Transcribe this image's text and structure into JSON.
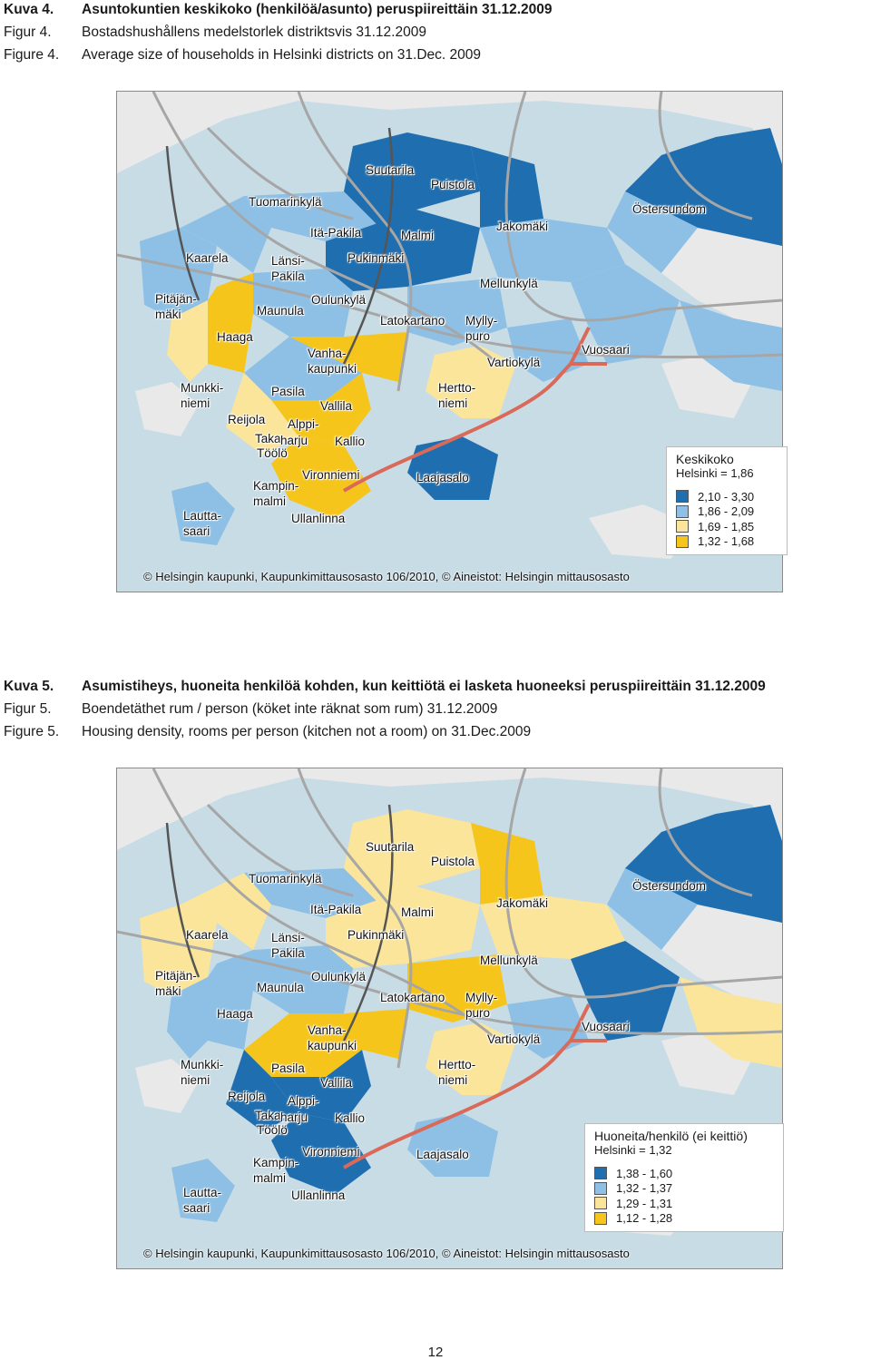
{
  "figure4": {
    "captions": [
      {
        "num": "Kuva 4.",
        "text": "Asuntokuntien keskikoko (henkilöä/asunto) peruspiireittäin 31.12.2009"
      },
      {
        "num": "Figur 4.",
        "text": "Bostadshushållens medelstorlek distriktsvis 31.12.2009"
      },
      {
        "num": "Figure 4.",
        "text": "Average size of households in Helsinki districts on 31.Dec. 2009"
      }
    ],
    "legend": {
      "title": "Keskikoko",
      "subtitle": "Helsinki = 1,86",
      "items": [
        {
          "label": "2,10 - 3,30",
          "color": "#1f6eb0"
        },
        {
          "label": "1,86 - 2,09",
          "color": "#8ec0e6"
        },
        {
          "label": "1,69 - 1,85",
          "color": "#fbe59a"
        },
        {
          "label": "1,32 - 1,68",
          "color": "#f6c51c"
        }
      ]
    },
    "credit": "© Helsingin kaupunki, Kaupunkimittausosasto 106/2010, © Aineistot: Helsingin mittausosasto"
  },
  "figure5": {
    "captions": [
      {
        "num": "Kuva 5.",
        "text": "Asumistiheys, huoneita henkilöä kohden, kun keittiötä ei lasketa huoneeksi peruspiireittäin 31.12.2009"
      },
      {
        "num": "Figur 5.",
        "text": "Boendetäthet rum / person (köket inte räknat som rum) 31.12.2009"
      },
      {
        "num": "Figure 5.",
        "text": "Housing density, rooms per person (kitchen not a room) on 31.Dec.2009"
      }
    ],
    "legend": {
      "title": "Huoneita/henkilö (ei keittiö)",
      "subtitle": "Helsinki = 1,32",
      "items": [
        {
          "label": "1,38 - 1,60",
          "color": "#1f6eb0"
        },
        {
          "label": "1,32 - 1,37",
          "color": "#8ec0e6"
        },
        {
          "label": "1,29 - 1,31",
          "color": "#fbe59a"
        },
        {
          "label": "1,12 - 1,28",
          "color": "#f6c51c"
        }
      ]
    },
    "credit": "© Helsingin kaupunki, Kaupunkimittausosasto 106/2010, © Aineistot: Helsingin mittausosasto"
  },
  "district_labels": [
    "Suutarila",
    "Puistola",
    "Tuomarinkylä",
    "Östersundom",
    "Itä-Pakila",
    "Malmi",
    "Jakomäki",
    "Kaarela",
    "Länsi-\nPakila",
    "Pukinmäki",
    "Mellunkylä",
    "Pitäjän-\nmäki",
    "Oulunkylä",
    "Maunula",
    "Latokartano",
    "Mylly-\npuro",
    "Haaga",
    "Vanha-\nkaupunki",
    "Vartiokylä",
    "Vuosaari",
    "Munkki-\nniemi",
    "Pasila",
    "Hertto-\nniemi",
    "Vallila",
    "Reijola",
    "Alppi-",
    "Taka-",
    "harju",
    "Kallio",
    "Töölö",
    "Kampin-\nmalmi",
    "Vironniemi",
    "Laajasalo",
    "Lautta-\nsaari",
    "Ullanlinna"
  ],
  "map_colors": {
    "sea": "#c8dce6",
    "land_outside": "#e9e9e9",
    "road": "#a6a6a6",
    "metro": "#d96a5a",
    "rail": "#555555"
  },
  "page_number": "12"
}
